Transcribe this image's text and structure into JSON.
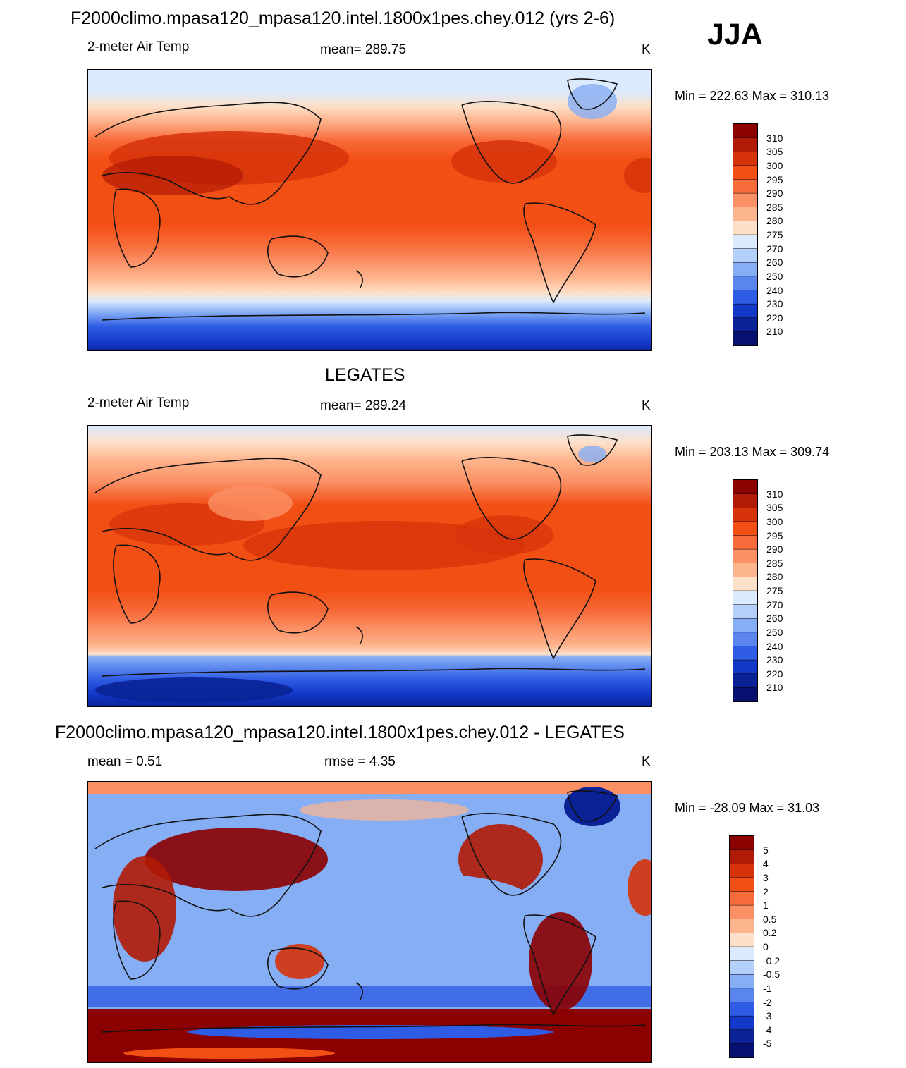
{
  "header": {
    "title": "F2000climo.mpasa120_mpasa120.intel.1800x1pes.chey.012 (yrs 2-6)",
    "season": "JJA"
  },
  "panels": [
    {
      "title": "",
      "left_label": "2-meter Air Temp",
      "center_label": "mean= 289.75",
      "right_label": "K",
      "minmax": "Min = 222.63 Max = 310.13"
    },
    {
      "title": "LEGATES",
      "left_label": "2-meter Air Temp",
      "center_label": "mean= 289.24",
      "right_label": "K",
      "minmax": "Min = 203.13 Max = 309.74"
    },
    {
      "title": "F2000climo.mpasa120_mpasa120.intel.1800x1pes.chey.012 - LEGATES",
      "left_label": "mean =   0.51",
      "center_label": "rmse =   4.35",
      "right_label": "K",
      "minmax": "Min = -28.09 Max =  31.03"
    }
  ],
  "colorbars": {
    "temperature": {
      "levels": [
        "310",
        "305",
        "300",
        "295",
        "290",
        "285",
        "280",
        "275",
        "270",
        "260",
        "250",
        "240",
        "230",
        "220",
        "210"
      ],
      "colors": [
        "#8b0000",
        "#b11a06",
        "#d6330b",
        "#f24f14",
        "#f86b3a",
        "#fb9065",
        "#fdb58e",
        "#fde0c8",
        "#dbeafc",
        "#b4cffa",
        "#86aef5",
        "#5a85ed",
        "#2f5ce4",
        "#1238c8",
        "#0a2296",
        "#061070"
      ]
    },
    "difference": {
      "levels": [
        "5",
        "4",
        "3",
        "2",
        "1",
        "0.5",
        "0.2",
        "0",
        "-0.2",
        "-0.5",
        "-1",
        "-2",
        "-3",
        "-4",
        "-5"
      ],
      "colors": [
        "#8b0000",
        "#b11a06",
        "#d6330b",
        "#f24f14",
        "#f86b3a",
        "#fb9065",
        "#fdb58e",
        "#fde0c8",
        "#dbeafc",
        "#b4cffa",
        "#86aef5",
        "#5a85ed",
        "#2f5ce4",
        "#1238c8",
        "#0a2296",
        "#061070"
      ]
    }
  }
}
